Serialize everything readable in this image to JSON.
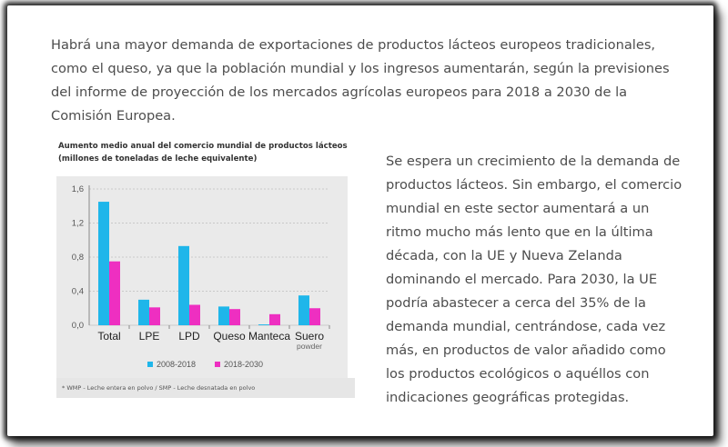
{
  "intro_text": "Habrá una mayor demanda de exportaciones de productos lácteos europeos tradicionales, como el queso, ya que la población mundial y los ingresos aumentarán, según la previsiones del informe de proyección de los mercados agrícolas europeos para 2018 a 2030 de la Comisión Europea.",
  "side_text": "Se espera un crecimiento de la demanda de productos lácteos. Sin embargo, el comercio mundial en este sector aumentará a un ritmo mucho más lento que en la última década, con la UE y Nueva Zelanda dominando el mercado. Para 2030, la UE podría abastecer a cerca del 35% de la demanda mundial, centrándose, cada vez más, en productos de valor añadido como los productos ecológicos o aquéllos con indicaciones geográficas protegidas.",
  "chart_data": {
    "type": "bar",
    "title": "Aumento medio anual del comercio mundial de productos lácteos",
    "subtitle": "(millones de toneladas de leche equivalente)",
    "categories": [
      "Total",
      "LPE",
      "LPD",
      "Queso",
      "Manteca",
      "Suero"
    ],
    "category_sublabels": [
      "",
      "",
      "",
      "",
      "",
      "powder"
    ],
    "series": [
      {
        "name": "2008-2018",
        "color": "#1fb6ea",
        "values": [
          1.45,
          0.3,
          0.93,
          0.22,
          0.01,
          0.35
        ]
      },
      {
        "name": "2018-2030",
        "color": "#ee2fc1",
        "values": [
          0.75,
          0.21,
          0.24,
          0.19,
          0.13,
          0.2
        ]
      }
    ],
    "yticks": [
      "0,0",
      "0,4",
      "0,8",
      "1,2",
      "1,6"
    ],
    "ytick_values": [
      0,
      0.4,
      0.8,
      1.2,
      1.6
    ],
    "ylim": [
      0,
      1.6
    ],
    "grid": true,
    "legend": "bottom",
    "footnote": "* WMP - Leche entera en polvo / SMP - Leche desnatada en polvo"
  }
}
